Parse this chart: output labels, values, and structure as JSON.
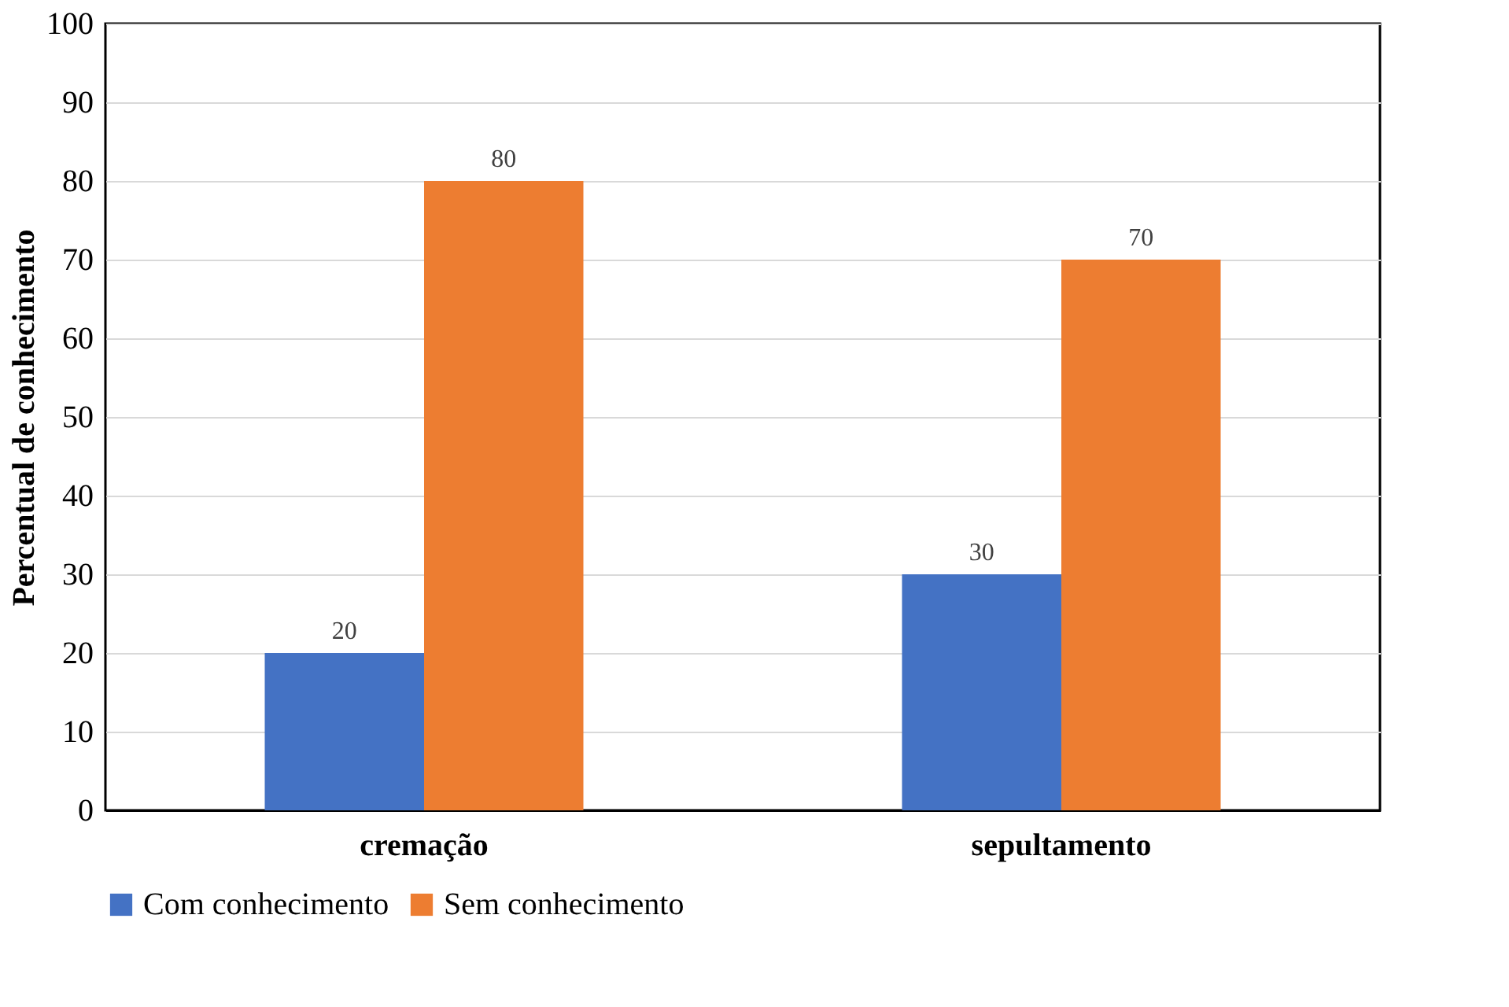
{
  "chart_data": {
    "type": "bar",
    "ylabel": "Percentual de conhecimento",
    "categories": [
      "cremação",
      "sepultamento"
    ],
    "series": [
      {
        "name": "Com conhecimento",
        "color": "#4472c4",
        "values": [
          20,
          30
        ]
      },
      {
        "name": "Sem conhecimento",
        "color": "#ed7d31",
        "values": [
          80,
          70
        ]
      }
    ],
    "ylim": [
      0,
      100
    ],
    "yticks": [
      0,
      10,
      20,
      30,
      40,
      50,
      60,
      70,
      80,
      90,
      100
    ],
    "grid": "y",
    "legend": "bottom",
    "data_labels": true
  }
}
